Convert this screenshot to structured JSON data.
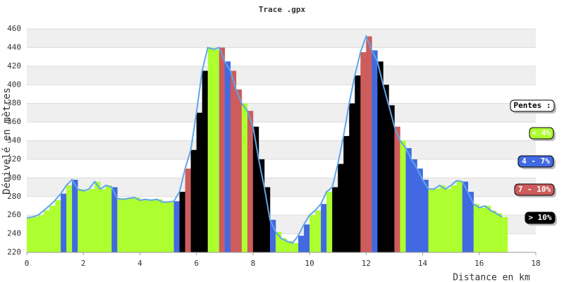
{
  "chart_data": {
    "type": "elevation-profile",
    "title": "Trace .gpx",
    "x_label": "Distance en km",
    "y_label": "Dénivelé en mètres",
    "xlim": [
      0,
      18
    ],
    "xticks": [
      0,
      2,
      4,
      6,
      8,
      10,
      12,
      14,
      16,
      18
    ],
    "ylim": [
      220,
      460
    ],
    "yticks": [
      220,
      240,
      260,
      280,
      300,
      320,
      340,
      360,
      380,
      400,
      420,
      440,
      460
    ],
    "grid": true,
    "line_color": "#5ea6ea",
    "legend_title": "Pentes :",
    "legend": [
      {
        "label": "< 4%",
        "color": "#adff2f"
      },
      {
        "label": "4 - 7%",
        "color": "#4169e1"
      },
      {
        "label": "7 - 10%",
        "color": "#cd5c5c"
      },
      {
        "label": "> 10%",
        "color": "#000000"
      }
    ],
    "x": [
      0,
      0.2,
      0.4,
      0.6,
      0.8,
      1.0,
      1.2,
      1.4,
      1.6,
      1.8,
      2.0,
      2.2,
      2.4,
      2.6,
      2.8,
      3.0,
      3.2,
      3.4,
      3.6,
      3.8,
      4.0,
      4.2,
      4.4,
      4.6,
      4.8,
      5.0,
      5.2,
      5.4,
      5.6,
      5.8,
      6.0,
      6.2,
      6.4,
      6.6,
      6.8,
      7.0,
      7.2,
      7.4,
      7.6,
      7.8,
      8.0,
      8.2,
      8.4,
      8.6,
      8.8,
      9.0,
      9.2,
      9.4,
      9.6,
      9.8,
      10.0,
      10.2,
      10.4,
      10.6,
      10.8,
      11.0,
      11.2,
      11.4,
      11.6,
      11.8,
      12.0,
      12.2,
      12.4,
      12.6,
      12.8,
      13.0,
      13.2,
      13.4,
      13.6,
      13.8,
      14.0,
      14.2,
      14.4,
      14.6,
      14.8,
      15.0,
      15.2,
      15.4,
      15.6,
      15.8,
      16.0,
      16.2,
      16.4,
      16.6,
      16.8
    ],
    "values": [
      257,
      258,
      260,
      265,
      270,
      276,
      283,
      292,
      298,
      288,
      286,
      288,
      296,
      288,
      292,
      290,
      278,
      277,
      278,
      279,
      276,
      277,
      276,
      277,
      274,
      274,
      275,
      285,
      310,
      330,
      370,
      415,
      440,
      438,
      440,
      425,
      415,
      395,
      380,
      372,
      355,
      320,
      290,
      255,
      242,
      235,
      232,
      230,
      238,
      250,
      260,
      265,
      272,
      285,
      290,
      315,
      345,
      380,
      410,
      435,
      452,
      437,
      425,
      400,
      378,
      355,
      340,
      332,
      320,
      310,
      298,
      288,
      288,
      292,
      288,
      292,
      297,
      296,
      285,
      272,
      268,
      270,
      265,
      262,
      258
    ],
    "colors": [
      "#adff2f",
      "#adff2f",
      "#adff2f",
      "#adff2f",
      "#adff2f",
      "#adff2f",
      "#4169e1",
      "#adff2f",
      "#4169e1",
      "#adff2f",
      "#adff2f",
      "#adff2f",
      "#adff2f",
      "#adff2f",
      "#adff2f",
      "#4169e1",
      "#adff2f",
      "#adff2f",
      "#adff2f",
      "#adff2f",
      "#adff2f",
      "#adff2f",
      "#adff2f",
      "#adff2f",
      "#adff2f",
      "#adff2f",
      "#4169e1",
      "#000000",
      "#cd5c5c",
      "#000000",
      "#000000",
      "#000000",
      "#adff2f",
      "#adff2f",
      "#cd5c5c",
      "#4169e1",
      "#cd5c5c",
      "#cd5c5c",
      "#adff2f",
      "#cd5c5c",
      "#000000",
      "#000000",
      "#000000",
      "#4169e1",
      "#adff2f",
      "#adff2f",
      "#adff2f",
      "#adff2f",
      "#4169e1",
      "#4169e1",
      "#adff2f",
      "#adff2f",
      "#4169e1",
      "#adff2f",
      "#000000",
      "#000000",
      "#000000",
      "#000000",
      "#000000",
      "#cd5c5c",
      "#cd5c5c",
      "#4169e1",
      "#000000",
      "#000000",
      "#000000",
      "#cd5c5c",
      "#adff2f",
      "#4169e1",
      "#4169e1",
      "#4169e1",
      "#4169e1",
      "#adff2f",
      "#adff2f",
      "#adff2f",
      "#adff2f",
      "#adff2f",
      "#adff2f",
      "#4169e1",
      "#4169e1",
      "#adff2f",
      "#adff2f",
      "#adff2f",
      "#adff2f",
      "#adff2f",
      "#adff2f"
    ]
  }
}
